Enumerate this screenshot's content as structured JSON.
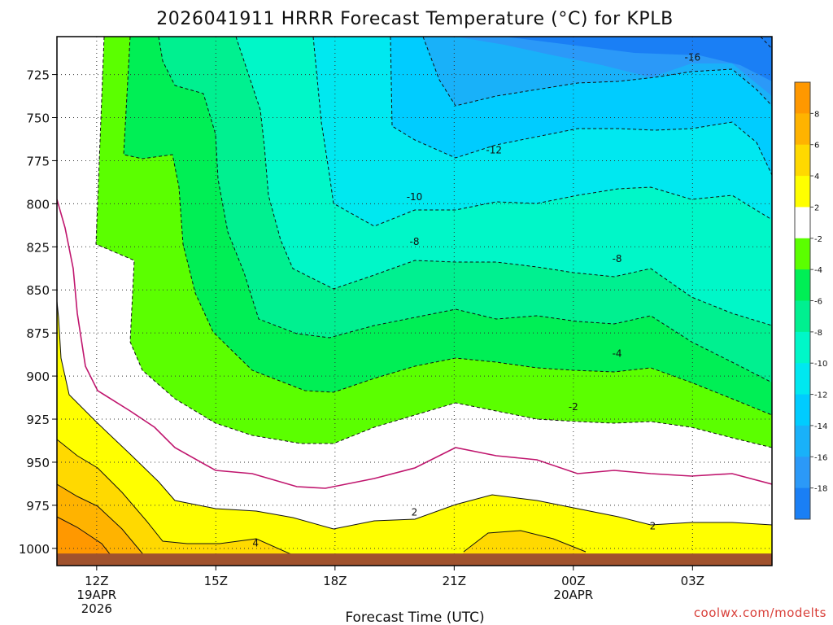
{
  "page": {
    "credit": "coolwx.com/modelts"
  },
  "chart_data": {
    "type": "heatmap",
    "title": "2026041911 HRRR Forecast Temperature (°C) for KPLB",
    "xlabel": "Forecast Time (UTC)",
    "ylabel": "",
    "x_ticks": [
      {
        "hour": 12,
        "label": "12Z",
        "sub1": "19APR",
        "sub2": "2026"
      },
      {
        "hour": 15,
        "label": "15Z"
      },
      {
        "hour": 18,
        "label": "18Z"
      },
      {
        "hour": 21,
        "label": "21Z"
      },
      {
        "hour": 24,
        "label": "00Z",
        "sub1": "20APR"
      },
      {
        "hour": 27,
        "label": "03Z"
      }
    ],
    "xlim": [
      11,
      29
    ],
    "y_ticks": [
      725,
      750,
      775,
      800,
      825,
      850,
      875,
      900,
      925,
      950,
      975,
      1000
    ],
    "ylim": [
      703,
      1010
    ],
    "surface_pressure": 1003,
    "color_levels": [
      {
        "min": -20,
        "max": -18,
        "color": "#1a7ff5"
      },
      {
        "min": -18,
        "max": -16,
        "color": "#2b99f8"
      },
      {
        "min": -16,
        "max": -14,
        "color": "#19b1f9"
      },
      {
        "min": -14,
        "max": -12,
        "color": "#00ccff"
      },
      {
        "min": -12,
        "max": -10,
        "color": "#00e8f0"
      },
      {
        "min": -10,
        "max": -8,
        "color": "#00f7c8"
      },
      {
        "min": -8,
        "max": -6,
        "color": "#00f090"
      },
      {
        "min": -6,
        "max": -4,
        "color": "#00ef55"
      },
      {
        "min": -4,
        "max": -2,
        "color": "#5bff00"
      },
      {
        "min": -2,
        "max": 2,
        "color": "#ffffff"
      },
      {
        "min": 2,
        "max": 4,
        "color": "#ffff00"
      },
      {
        "min": 4,
        "max": 6,
        "color": "#ffd900"
      },
      {
        "min": 6,
        "max": 8,
        "color": "#ffb300"
      },
      {
        "min": 8,
        "max": 10,
        "color": "#ff9800"
      }
    ],
    "colorbar_labels": [
      8,
      6,
      4,
      2,
      -2,
      -4,
      -6,
      -8,
      -10,
      -12,
      -14,
      -16,
      -18
    ],
    "contour_labels": [
      {
        "value": "-16",
        "hour": 27.0,
        "pressure": 715
      },
      {
        "value": "-12",
        "hour": 22.0,
        "pressure": 769
      },
      {
        "value": "-10",
        "hour": 20.0,
        "pressure": 796
      },
      {
        "value": "-8",
        "hour": 20.0,
        "pressure": 822
      },
      {
        "value": "-8",
        "hour": 25.1,
        "pressure": 832
      },
      {
        "value": "-4",
        "hour": 25.1,
        "pressure": 887
      },
      {
        "value": "-2",
        "hour": 24.0,
        "pressure": 918
      },
      {
        "value": "2",
        "hour": 20.0,
        "pressure": 979
      },
      {
        "value": "2",
        "hour": 26.0,
        "pressure": 987
      },
      {
        "value": "4",
        "hour": 16.0,
        "pressure": 997
      }
    ]
  }
}
